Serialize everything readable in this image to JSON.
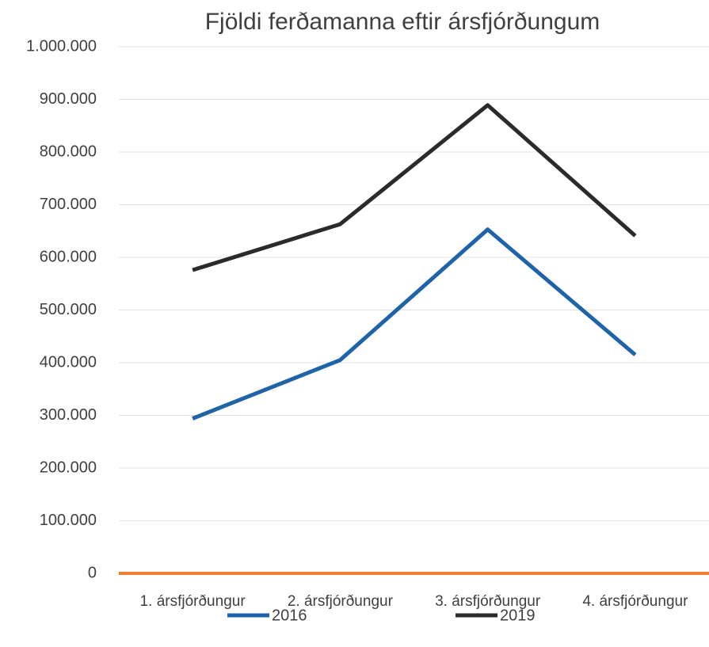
{
  "chart_data": {
    "type": "line",
    "title": "Fjöldi ferðamanna eftir ársfjórðungum",
    "categories": [
      "1. ársfjórðungur",
      "2. ársfjórðungur",
      "3. ársfjórðungur",
      "4. ársfjórðungur"
    ],
    "series": [
      {
        "name": "2016",
        "color": "#1f63a8",
        "values": [
          294000,
          405000,
          653000,
          415000
        ]
      },
      {
        "name": "2019",
        "color": "#2b2b2b",
        "values": [
          576000,
          663000,
          889000,
          641000
        ]
      }
    ],
    "ylim": [
      0,
      1000000
    ],
    "yticks": [
      0,
      {
        "value": 100000,
        "label": "100.000"
      },
      {
        "value": 200000,
        "label": "200.000"
      },
      {
        "value": 300000,
        "label": "300.000"
      },
      {
        "value": 400000,
        "label": "400.000"
      },
      {
        "value": 500000,
        "label": "500.000"
      },
      {
        "value": 600000,
        "label": "600.000"
      },
      {
        "value": 700000,
        "label": "700.000"
      },
      {
        "value": 800000,
        "label": "800.000"
      },
      {
        "value": 900000,
        "label": "900.000"
      },
      {
        "value": 1000000,
        "label": "1.000.000"
      }
    ],
    "grid": true,
    "legend": "bottom"
  }
}
